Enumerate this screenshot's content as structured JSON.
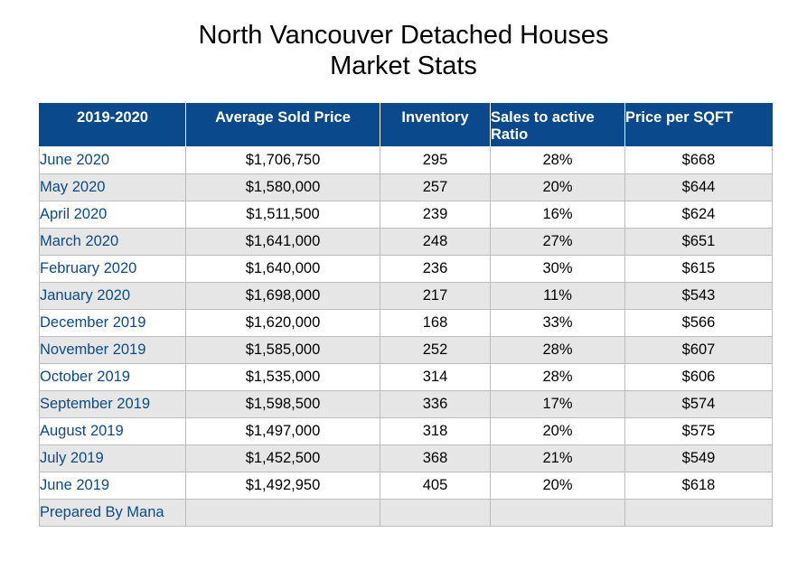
{
  "title": {
    "line1": "North Vancouver Detached Houses",
    "line2": "Market Stats"
  },
  "colors": {
    "header_bg": "#0a4a8c",
    "header_text": "#ffffff",
    "month_text": "#0d4a86",
    "alt_row": "#e6e6e6"
  },
  "chart_data": {
    "type": "table",
    "title": "North Vancouver Detached Houses Market Stats",
    "columns": [
      "2019-2020",
      "Average Sold Price",
      "Inventory",
      "Sales to active Ratio",
      "Price per SQFT"
    ],
    "rows": [
      [
        "June 2020",
        "$1,706,750",
        "295",
        "28%",
        "$668"
      ],
      [
        "May 2020",
        "$1,580,000",
        "257",
        "20%",
        "$644"
      ],
      [
        "April 2020",
        "$1,511,500",
        "239",
        "16%",
        "$624"
      ],
      [
        "March 2020",
        "$1,641,000",
        "248",
        "27%",
        "$651"
      ],
      [
        "February 2020",
        "$1,640,000",
        "236",
        "30%",
        "$615"
      ],
      [
        "January 2020",
        "$1,698,000",
        "217",
        "11%",
        "$543"
      ],
      [
        "December 2019",
        "$1,620,000",
        "168",
        "33%",
        "$566"
      ],
      [
        "November 2019",
        "$1,585,000",
        "252",
        "28%",
        "$607"
      ],
      [
        "October 2019",
        "$1,535,000",
        "314",
        "28%",
        "$606"
      ],
      [
        "September 2019",
        "$1,598,500",
        "336",
        "17%",
        "$574"
      ],
      [
        "August 2019",
        "$1,497,000",
        "318",
        "20%",
        "$575"
      ],
      [
        "July 2019",
        "$1,452,500",
        "368",
        "21%",
        "$549"
      ],
      [
        "June 2019",
        "$1,492,950",
        "405",
        "20%",
        "$618"
      ],
      [
        "Prepared By Mana",
        "",
        "",
        "",
        ""
      ]
    ]
  }
}
